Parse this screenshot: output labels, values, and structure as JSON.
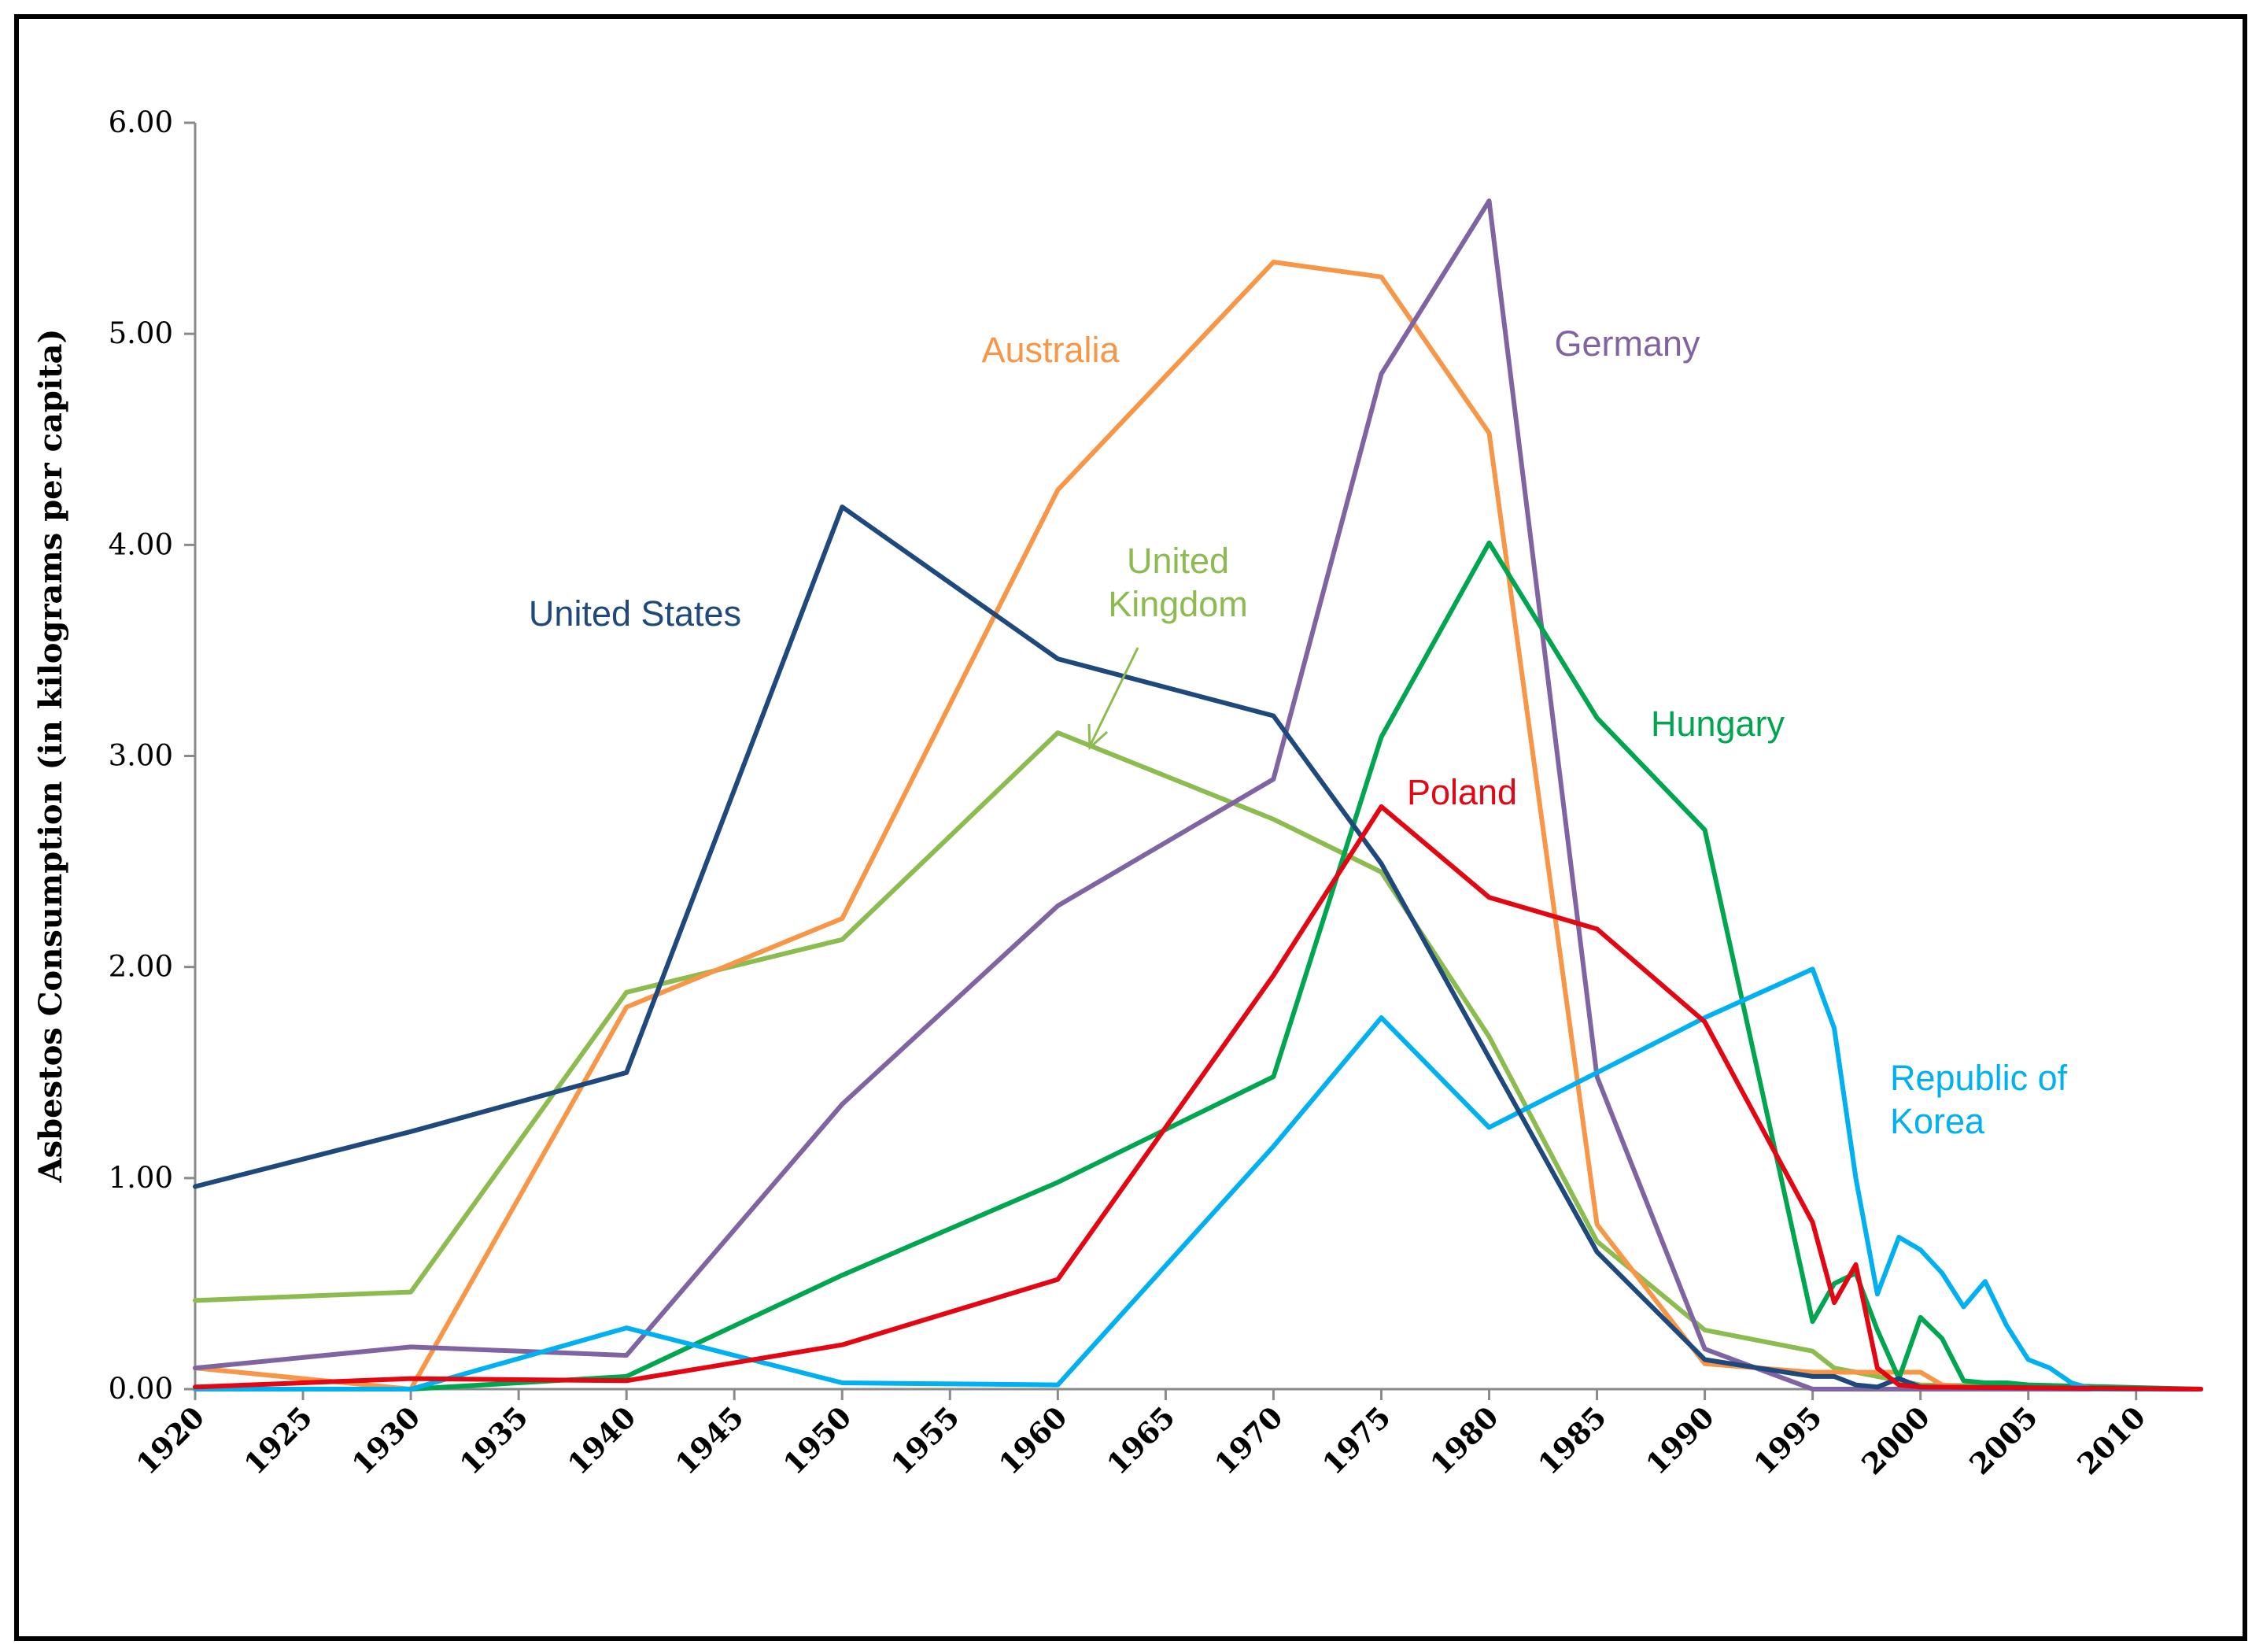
{
  "chart_data": {
    "type": "line",
    "title": "",
    "xlabel": "",
    "ylabel": "Asbestos Consumption (in kilograms per capita)",
    "xlim": [
      1920,
      2013
    ],
    "ylim": [
      0,
      6
    ],
    "x_ticks": [
      "1920",
      "1925",
      "1930",
      "1935",
      "1940",
      "1945",
      "1950",
      "1955",
      "1960",
      "1965",
      "1970",
      "1975",
      "1980",
      "1985",
      "1990",
      "1995",
      "2000",
      "2005",
      "2010"
    ],
    "y_ticks": [
      "0.00",
      "1.00",
      "2.00",
      "3.00",
      "4.00",
      "5.00",
      "6.00"
    ],
    "grid": false,
    "legend": "inline labels",
    "series": [
      {
        "name": "United Kingdom",
        "label_lines": [
          "United",
          "Kingdom"
        ],
        "color": "#8CBB4F",
        "points": [
          [
            1920,
            0.42
          ],
          [
            1930,
            0.46
          ],
          [
            1940,
            1.88
          ],
          [
            1950,
            2.13
          ],
          [
            1960,
            3.11
          ],
          [
            1970,
            2.7
          ],
          [
            1975,
            2.45
          ],
          [
            1980,
            1.67
          ],
          [
            1985,
            0.7
          ],
          [
            1990,
            0.28
          ],
          [
            1995,
            0.18
          ],
          [
            1996,
            0.1
          ],
          [
            1997,
            0.08
          ],
          [
            1998,
            0.06
          ],
          [
            1999,
            0.04
          ],
          [
            2000,
            0.02
          ],
          [
            2013,
            0.0
          ]
        ]
      },
      {
        "name": "Australia",
        "label_lines": [
          "Australia"
        ],
        "color": "#F79646",
        "points": [
          [
            1920,
            0.1
          ],
          [
            1930,
            0.0
          ],
          [
            1940,
            1.81
          ],
          [
            1950,
            2.23
          ],
          [
            1960,
            4.26
          ],
          [
            1970,
            5.34
          ],
          [
            1975,
            5.27
          ],
          [
            1980,
            4.53
          ],
          [
            1985,
            0.78
          ],
          [
            1990,
            0.12
          ],
          [
            1995,
            0.08
          ],
          [
            1998,
            0.08
          ],
          [
            2000,
            0.08
          ],
          [
            2001,
            0.02
          ],
          [
            2003,
            0.0
          ],
          [
            2013,
            0.0
          ]
        ]
      },
      {
        "name": "Germany",
        "label_lines": [
          "Germany"
        ],
        "color": "#8064A2",
        "points": [
          [
            1920,
            0.1
          ],
          [
            1930,
            0.2
          ],
          [
            1940,
            0.16
          ],
          [
            1950,
            1.35
          ],
          [
            1960,
            2.29
          ],
          [
            1970,
            2.89
          ],
          [
            1975,
            4.81
          ],
          [
            1980,
            5.63
          ],
          [
            1985,
            1.48
          ],
          [
            1990,
            0.19
          ],
          [
            1995,
            0.0
          ],
          [
            1998,
            0.0
          ],
          [
            1999,
            0.0
          ],
          [
            2013,
            0.0
          ]
        ]
      },
      {
        "name": "Hungary",
        "label_lines": [
          "Hungary"
        ],
        "color": "#00A54F",
        "points": [
          [
            1920,
            0.0
          ],
          [
            1930,
            0.0
          ],
          [
            1940,
            0.06
          ],
          [
            1950,
            0.54
          ],
          [
            1960,
            0.98
          ],
          [
            1970,
            1.48
          ],
          [
            1975,
            3.09
          ],
          [
            1980,
            4.01
          ],
          [
            1985,
            3.18
          ],
          [
            1990,
            2.65
          ],
          [
            1995,
            0.32
          ],
          [
            1996,
            0.5
          ],
          [
            1997,
            0.55
          ],
          [
            1998,
            0.28
          ],
          [
            1999,
            0.05
          ],
          [
            2000,
            0.34
          ],
          [
            2001,
            0.24
          ],
          [
            2002,
            0.04
          ],
          [
            2003,
            0.03
          ],
          [
            2004,
            0.03
          ],
          [
            2005,
            0.02
          ],
          [
            2013,
            0.0
          ]
        ]
      },
      {
        "name": "Republic of Korea",
        "label_lines": [
          "Republic of",
          "Korea"
        ],
        "color": "#00B0F0",
        "points": [
          [
            1920,
            0.0
          ],
          [
            1930,
            0.0
          ],
          [
            1940,
            0.29
          ],
          [
            1950,
            0.03
          ],
          [
            1960,
            0.02
          ],
          [
            1970,
            1.15
          ],
          [
            1975,
            1.76
          ],
          [
            1980,
            1.24
          ],
          [
            1985,
            1.5
          ],
          [
            1990,
            1.76
          ],
          [
            1995,
            1.99
          ],
          [
            1996,
            1.71
          ],
          [
            1997,
            1.0
          ],
          [
            1998,
            0.45
          ],
          [
            1999,
            0.72
          ],
          [
            2000,
            0.66
          ],
          [
            2001,
            0.55
          ],
          [
            2002,
            0.39
          ],
          [
            2003,
            0.51
          ],
          [
            2004,
            0.3
          ],
          [
            2005,
            0.14
          ],
          [
            2006,
            0.1
          ],
          [
            2007,
            0.03
          ],
          [
            2008,
            0.0
          ],
          [
            2013,
            0.0
          ]
        ]
      },
      {
        "name": "United States",
        "label_lines": [
          "United States"
        ],
        "color": "#1F497D",
        "points": [
          [
            1920,
            0.96
          ],
          [
            1930,
            1.22
          ],
          [
            1940,
            1.5
          ],
          [
            1950,
            4.18
          ],
          [
            1960,
            3.46
          ],
          [
            1970,
            3.19
          ],
          [
            1975,
            2.49
          ],
          [
            1980,
            1.57
          ],
          [
            1985,
            0.65
          ],
          [
            1990,
            0.14
          ],
          [
            1995,
            0.06
          ],
          [
            1996,
            0.06
          ],
          [
            1997,
            0.02
          ],
          [
            1998,
            0.01
          ],
          [
            1999,
            0.05
          ],
          [
            2000,
            0.01
          ],
          [
            2013,
            0.0
          ]
        ]
      },
      {
        "name": "Poland",
        "label_lines": [
          "Poland"
        ],
        "color": "#E30613",
        "points": [
          [
            1920,
            0.01
          ],
          [
            1930,
            0.05
          ],
          [
            1940,
            0.04
          ],
          [
            1950,
            0.21
          ],
          [
            1960,
            0.52
          ],
          [
            1970,
            1.96
          ],
          [
            1975,
            2.76
          ],
          [
            1980,
            2.33
          ],
          [
            1985,
            2.18
          ],
          [
            1990,
            1.74
          ],
          [
            1995,
            0.79
          ],
          [
            1996,
            0.41
          ],
          [
            1997,
            0.59
          ],
          [
            1998,
            0.1
          ],
          [
            1999,
            0.02
          ],
          [
            2000,
            0.01
          ],
          [
            2013,
            0.0
          ]
        ]
      }
    ]
  }
}
